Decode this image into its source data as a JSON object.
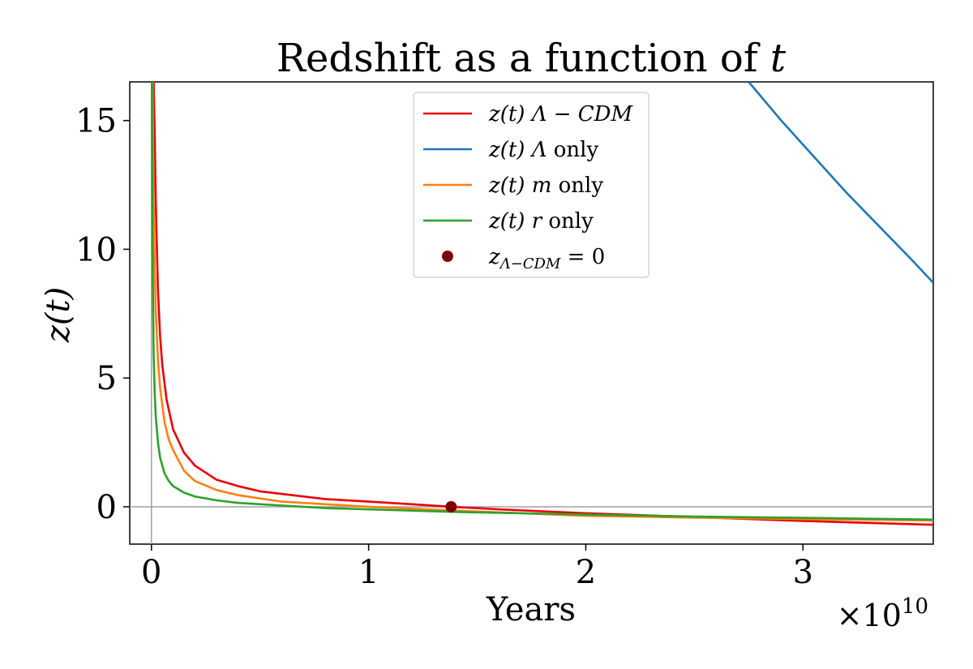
{
  "chart_data": {
    "type": "line",
    "title": "Redshift as a function of",
    "title_var": "t",
    "xlabel": "Years",
    "ylabel": "z(t)",
    "x_multiplier": "×10",
    "x_multiplier_exp": "10",
    "xlim": [
      -1000000000.0,
      36000000000.0
    ],
    "ylim": [
      -1.45,
      16.5
    ],
    "xticks": [
      0,
      10000000000.0,
      20000000000.0,
      30000000000.0
    ],
    "xtick_labels": [
      "0",
      "1",
      "2",
      "3"
    ],
    "yticks": [
      0,
      5,
      10,
      15
    ],
    "ytick_labels": [
      "0",
      "5",
      "10",
      "15"
    ],
    "grid": false,
    "legend_position": "top-center",
    "zero_reference_lines": true,
    "series": [
      {
        "name": "z(t) Λ − CDM",
        "legend_label": {
          "base": "z(t) Λ − CDM",
          "suffix": ""
        },
        "color": "#e8000b",
        "x": [
          100000000.0,
          150000000.0,
          200000000.0,
          300000000.0,
          400000000.0,
          500000000.0,
          700000000.0,
          1000000000.0,
          1500000000.0,
          2000000000.0,
          3000000000.0,
          4000000000.0,
          5000000000.0,
          6000000000.0,
          8000000000.0,
          10000000000.0,
          12000000000.0,
          13800000000.0,
          16000000000.0,
          20000000000.0,
          25000000000.0,
          30000000000.0,
          36000000000.0
        ],
        "y": [
          16.5,
          14.5,
          11.8,
          8.4,
          6.6,
          5.5,
          4.15,
          3.0,
          2.1,
          1.6,
          1.05,
          0.8,
          0.6,
          0.5,
          0.3,
          0.2,
          0.1,
          0.0,
          -0.1,
          -0.25,
          -0.4,
          -0.55,
          -0.7
        ]
      },
      {
        "name": "z(t) Λ only",
        "legend_label": {
          "base": "z(t) Λ",
          "suffix": " only"
        },
        "color": "#1f77b4",
        "x": [
          27500000000.0,
          29000000000.0,
          30500000000.0,
          32000000000.0,
          33500000000.0,
          35000000000.0,
          36000000000.0
        ],
        "y": [
          16.5,
          15.0,
          13.6,
          12.2,
          10.9,
          9.6,
          8.7
        ]
      },
      {
        "name": "z(t) m only",
        "legend_label": {
          "base": "z(t) m",
          "suffix": " only"
        },
        "color": "#ff7f0e",
        "x": [
          50000000.0,
          100000000.0,
          150000000.0,
          200000000.0,
          300000000.0,
          400000000.0,
          600000000.0,
          800000000.0,
          1000000000.0,
          1500000000.0,
          2000000000.0,
          3000000000.0,
          4000000000.0,
          6000000000.0,
          8000000000.0,
          10000000000.0,
          14000000000.0,
          20000000000.0,
          25000000000.0,
          30000000000.0,
          36000000000.0
        ],
        "y": [
          16.5,
          11.8,
          9.3,
          7.6,
          5.7,
          4.6,
          3.3,
          2.6,
          2.2,
          1.4,
          1.0,
          0.65,
          0.45,
          0.2,
          0.1,
          0.0,
          -0.15,
          -0.35,
          -0.42,
          -0.48,
          -0.53
        ]
      },
      {
        "name": "z(t) r only",
        "legend_label": {
          "base": "z(t) r",
          "suffix": " only"
        },
        "color": "#2ca02c",
        "x": [
          20000000.0,
          50000000.0,
          100000000.0,
          150000000.0,
          200000000.0,
          300000000.0,
          400000000.0,
          600000000.0,
          800000000.0,
          1000000000.0,
          1500000000.0,
          2000000000.0,
          3000000000.0,
          4000000000.0,
          6000000000.0,
          8000000000.0,
          10000000000.0,
          14000000000.0,
          20000000000.0,
          25000000000.0,
          30000000000.0,
          36000000000.0
        ],
        "y": [
          16.5,
          10.0,
          6.0,
          4.4,
          3.5,
          2.5,
          1.9,
          1.3,
          1.0,
          0.8,
          0.55,
          0.4,
          0.25,
          0.15,
          0.05,
          -0.05,
          -0.1,
          -0.2,
          -0.3,
          -0.38,
          -0.43,
          -0.5
        ]
      }
    ],
    "points": [
      {
        "name": "z_{Λ−CDM} = 0",
        "legend_label": {
          "base": "z",
          "sub": "Λ−CDM",
          "suffix": " = 0"
        },
        "color": "#800000",
        "x": 13800000000.0,
        "y": 0
      }
    ]
  }
}
